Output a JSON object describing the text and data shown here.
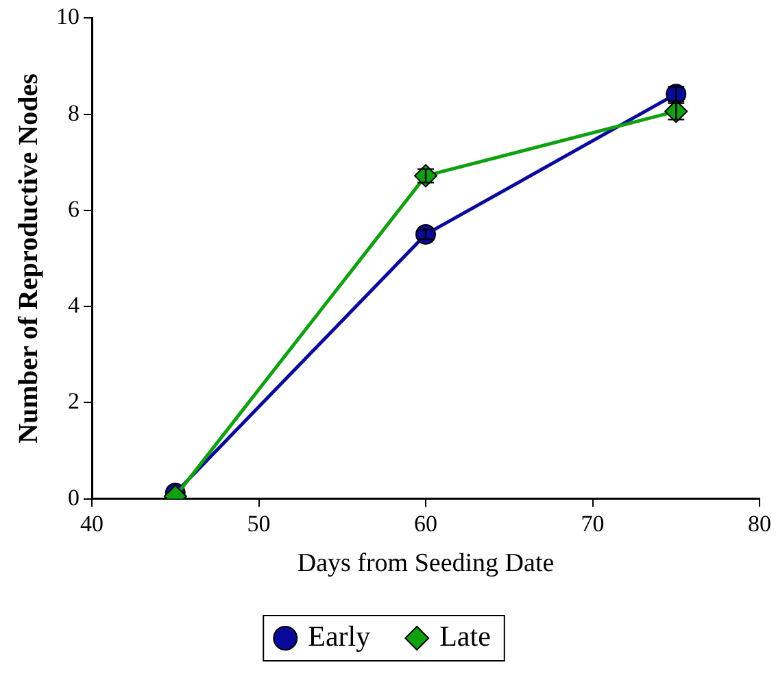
{
  "chart_data": {
    "type": "line",
    "xlabel": "Days from Seeding Date",
    "ylabel": "Number of Reproductive Nodes",
    "x": [
      45,
      60,
      75
    ],
    "series": [
      {
        "name": "Early",
        "color": "#0a0a9a",
        "marker": "circle",
        "values": [
          0.12,
          5.5,
          8.42
        ],
        "errors": [
          null,
          0.1,
          0.15
        ]
      },
      {
        "name": "Late",
        "color": "#10a010",
        "marker": "diamond",
        "values": [
          0.05,
          6.72,
          8.06
        ],
        "errors": [
          null,
          0.14,
          0.17
        ]
      }
    ],
    "xlim": [
      40,
      80
    ],
    "xticks": [
      40,
      50,
      60,
      70,
      80
    ],
    "ylim": [
      0,
      10
    ],
    "yticks": [
      0,
      2,
      4,
      6,
      8,
      10
    ],
    "grid": false,
    "legend": "bottom",
    "line_style": "solid"
  }
}
